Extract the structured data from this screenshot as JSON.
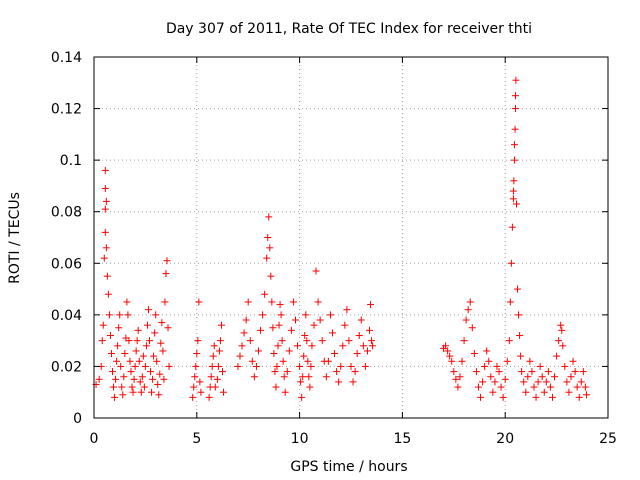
{
  "chart_data": {
    "type": "scatter",
    "title": "Day 307 of 2011, Rate Of TEC Index for receiver thti",
    "xlabel": "GPS time / hours",
    "ylabel": "ROTI / TECUs",
    "xlim": [
      0,
      25
    ],
    "ylim": [
      0,
      0.14
    ],
    "x_ticks": [
      "0",
      "5",
      "10",
      "15",
      "20",
      "25"
    ],
    "y_ticks": [
      "0",
      "0.02",
      "0.04",
      "0.06",
      "0.08",
      "0.1",
      "0.12",
      "0.14"
    ],
    "grid": true,
    "marker": "+",
    "color": "#ff0000",
    "series": [
      {
        "points": [
          [
            0.1,
            0.013
          ],
          [
            0.25,
            0.015
          ],
          [
            0.35,
            0.02
          ],
          [
            0.4,
            0.03
          ],
          [
            0.45,
            0.036
          ],
          [
            0.5,
            0.062
          ],
          [
            0.55,
            0.081
          ],
          [
            0.55,
            0.089
          ],
          [
            0.55,
            0.096
          ],
          [
            0.55,
            0.072
          ],
          [
            0.6,
            0.084
          ],
          [
            0.6,
            0.066
          ],
          [
            0.65,
            0.055
          ],
          [
            0.7,
            0.048
          ],
          [
            0.75,
            0.04
          ],
          [
            0.8,
            0.032
          ],
          [
            0.85,
            0.025
          ],
          [
            0.9,
            0.018
          ],
          [
            0.95,
            0.012
          ],
          [
            1.0,
            0.008
          ],
          [
            1.05,
            0.015
          ],
          [
            1.1,
            0.022
          ],
          [
            1.15,
            0.028
          ],
          [
            1.2,
            0.035
          ],
          [
            1.25,
            0.04
          ],
          [
            1.3,
            0.02
          ],
          [
            1.35,
            0.012
          ],
          [
            1.4,
            0.009
          ],
          [
            1.45,
            0.016
          ],
          [
            1.5,
            0.025
          ],
          [
            1.55,
            0.031
          ],
          [
            1.6,
            0.045
          ],
          [
            1.65,
            0.04
          ],
          [
            1.7,
            0.03
          ],
          [
            1.75,
            0.022
          ],
          [
            1.8,
            0.018
          ],
          [
            1.85,
            0.012
          ],
          [
            1.9,
            0.01
          ],
          [
            1.95,
            0.015
          ],
          [
            2.0,
            0.02
          ],
          [
            2.05,
            0.026
          ],
          [
            2.1,
            0.03
          ],
          [
            2.15,
            0.034
          ],
          [
            2.2,
            0.022
          ],
          [
            2.25,
            0.014
          ],
          [
            2.3,
            0.01
          ],
          [
            2.35,
            0.016
          ],
          [
            2.4,
            0.024
          ],
          [
            2.45,
            0.012
          ],
          [
            2.5,
            0.02
          ],
          [
            2.55,
            0.028
          ],
          [
            2.6,
            0.036
          ],
          [
            2.65,
            0.042
          ],
          [
            2.7,
            0.03
          ],
          [
            2.75,
            0.018
          ],
          [
            2.8,
            0.01
          ],
          [
            2.85,
            0.015
          ],
          [
            2.9,
            0.024
          ],
          [
            2.95,
            0.033
          ],
          [
            3.0,
            0.04
          ],
          [
            3.05,
            0.022
          ],
          [
            3.1,
            0.013
          ],
          [
            3.15,
            0.009
          ],
          [
            3.2,
            0.017
          ],
          [
            3.25,
            0.029
          ],
          [
            3.3,
            0.037
          ],
          [
            3.35,
            0.026
          ],
          [
            3.4,
            0.015
          ],
          [
            3.45,
            0.045
          ],
          [
            3.5,
            0.056
          ],
          [
            3.55,
            0.061
          ],
          [
            3.6,
            0.035
          ],
          [
            3.65,
            0.02
          ],
          [
            4.8,
            0.008
          ],
          [
            4.85,
            0.012
          ],
          [
            4.9,
            0.016
          ],
          [
            4.95,
            0.02
          ],
          [
            5.0,
            0.025
          ],
          [
            5.05,
            0.03
          ],
          [
            5.1,
            0.045
          ],
          [
            5.15,
            0.014
          ],
          [
            5.2,
            0.01
          ],
          [
            5.6,
            0.008
          ],
          [
            5.65,
            0.012
          ],
          [
            5.7,
            0.016
          ],
          [
            5.75,
            0.02
          ],
          [
            5.8,
            0.024
          ],
          [
            5.85,
            0.028
          ],
          [
            5.9,
            0.012
          ],
          [
            6.0,
            0.015
          ],
          [
            6.05,
            0.02
          ],
          [
            6.1,
            0.026
          ],
          [
            6.15,
            0.03
          ],
          [
            6.2,
            0.036
          ],
          [
            6.25,
            0.018
          ],
          [
            6.3,
            0.01
          ],
          [
            7.0,
            0.02
          ],
          [
            7.1,
            0.024
          ],
          [
            7.2,
            0.028
          ],
          [
            7.3,
            0.033
          ],
          [
            7.4,
            0.038
          ],
          [
            7.5,
            0.045
          ],
          [
            7.6,
            0.03
          ],
          [
            7.7,
            0.022
          ],
          [
            7.8,
            0.016
          ],
          [
            7.9,
            0.02
          ],
          [
            8.0,
            0.026
          ],
          [
            8.1,
            0.034
          ],
          [
            8.2,
            0.04
          ],
          [
            8.3,
            0.048
          ],
          [
            8.4,
            0.062
          ],
          [
            8.45,
            0.07
          ],
          [
            8.5,
            0.078
          ],
          [
            8.55,
            0.066
          ],
          [
            8.6,
            0.055
          ],
          [
            8.65,
            0.045
          ],
          [
            8.7,
            0.035
          ],
          [
            8.75,
            0.025
          ],
          [
            8.8,
            0.018
          ],
          [
            8.85,
            0.012
          ],
          [
            8.9,
            0.02
          ],
          [
            8.95,
            0.028
          ],
          [
            9.0,
            0.036
          ],
          [
            9.05,
            0.044
          ],
          [
            9.1,
            0.04
          ],
          [
            9.15,
            0.03
          ],
          [
            9.2,
            0.022
          ],
          [
            9.25,
            0.016
          ],
          [
            9.3,
            0.01
          ],
          [
            9.4,
            0.018
          ],
          [
            9.5,
            0.026
          ],
          [
            9.6,
            0.034
          ],
          [
            9.7,
            0.045
          ],
          [
            9.8,
            0.038
          ],
          [
            9.9,
            0.028
          ],
          [
            10.0,
            0.02
          ],
          [
            10.05,
            0.014
          ],
          [
            10.1,
            0.008
          ],
          [
            10.15,
            0.016
          ],
          [
            10.2,
            0.024
          ],
          [
            10.25,
            0.032
          ],
          [
            10.3,
            0.04
          ],
          [
            10.35,
            0.03
          ],
          [
            10.4,
            0.022
          ],
          [
            10.45,
            0.016
          ],
          [
            10.5,
            0.012
          ],
          [
            10.55,
            0.02
          ],
          [
            10.6,
            0.028
          ],
          [
            10.7,
            0.036
          ],
          [
            10.8,
            0.057
          ],
          [
            10.9,
            0.045
          ],
          [
            11.0,
            0.038
          ],
          [
            11.1,
            0.03
          ],
          [
            11.2,
            0.022
          ],
          [
            11.3,
            0.016
          ],
          [
            11.4,
            0.022
          ],
          [
            11.5,
            0.04
          ],
          [
            11.6,
            0.033
          ],
          [
            11.7,
            0.025
          ],
          [
            11.8,
            0.018
          ],
          [
            11.9,
            0.014
          ],
          [
            12.0,
            0.02
          ],
          [
            12.1,
            0.028
          ],
          [
            12.2,
            0.036
          ],
          [
            12.3,
            0.042
          ],
          [
            12.4,
            0.03
          ],
          [
            12.5,
            0.02
          ],
          [
            12.6,
            0.014
          ],
          [
            12.7,
            0.018
          ],
          [
            12.8,
            0.025
          ],
          [
            12.9,
            0.032
          ],
          [
            13.0,
            0.038
          ],
          [
            13.1,
            0.028
          ],
          [
            13.2,
            0.02
          ],
          [
            13.3,
            0.026
          ],
          [
            13.4,
            0.034
          ],
          [
            13.45,
            0.044
          ],
          [
            13.5,
            0.03
          ],
          [
            13.55,
            0.028
          ],
          [
            17.0,
            0.027
          ],
          [
            17.1,
            0.028
          ],
          [
            17.2,
            0.026
          ],
          [
            17.3,
            0.024
          ],
          [
            17.4,
            0.022
          ],
          [
            17.5,
            0.018
          ],
          [
            17.6,
            0.015
          ],
          [
            17.7,
            0.012
          ],
          [
            17.8,
            0.016
          ],
          [
            17.9,
            0.022
          ],
          [
            18.0,
            0.03
          ],
          [
            18.1,
            0.038
          ],
          [
            18.2,
            0.042
          ],
          [
            18.3,
            0.045
          ],
          [
            18.4,
            0.035
          ],
          [
            18.5,
            0.025
          ],
          [
            18.6,
            0.018
          ],
          [
            18.7,
            0.012
          ],
          [
            18.8,
            0.008
          ],
          [
            18.9,
            0.014
          ],
          [
            19.0,
            0.02
          ],
          [
            19.1,
            0.026
          ],
          [
            19.2,
            0.022
          ],
          [
            19.3,
            0.016
          ],
          [
            19.4,
            0.01
          ],
          [
            19.5,
            0.014
          ],
          [
            19.6,
            0.02
          ],
          [
            19.7,
            0.018
          ],
          [
            19.8,
            0.012
          ],
          [
            19.9,
            0.008
          ],
          [
            20.0,
            0.015
          ],
          [
            20.1,
            0.022
          ],
          [
            20.2,
            0.03
          ],
          [
            20.25,
            0.045
          ],
          [
            20.3,
            0.06
          ],
          [
            20.35,
            0.074
          ],
          [
            20.4,
            0.088
          ],
          [
            20.4,
            0.085
          ],
          [
            20.42,
            0.092
          ],
          [
            20.45,
            0.1
          ],
          [
            20.45,
            0.106
          ],
          [
            20.48,
            0.112
          ],
          [
            20.5,
            0.12
          ],
          [
            20.5,
            0.125
          ],
          [
            20.52,
            0.131
          ],
          [
            20.55,
            0.083
          ],
          [
            20.6,
            0.05
          ],
          [
            20.65,
            0.04
          ],
          [
            20.7,
            0.032
          ],
          [
            20.75,
            0.024
          ],
          [
            20.8,
            0.018
          ],
          [
            20.9,
            0.014
          ],
          [
            21.0,
            0.01
          ],
          [
            21.1,
            0.016
          ],
          [
            21.2,
            0.022
          ],
          [
            21.3,
            0.018
          ],
          [
            21.4,
            0.012
          ],
          [
            21.5,
            0.008
          ],
          [
            21.6,
            0.014
          ],
          [
            21.7,
            0.02
          ],
          [
            21.8,
            0.016
          ],
          [
            21.9,
            0.01
          ],
          [
            22.0,
            0.014
          ],
          [
            22.1,
            0.018
          ],
          [
            22.2,
            0.012
          ],
          [
            22.3,
            0.008
          ],
          [
            22.4,
            0.016
          ],
          [
            22.5,
            0.024
          ],
          [
            22.6,
            0.03
          ],
          [
            22.7,
            0.036
          ],
          [
            22.75,
            0.034
          ],
          [
            22.8,
            0.028
          ],
          [
            22.9,
            0.02
          ],
          [
            23.0,
            0.014
          ],
          [
            23.1,
            0.01
          ],
          [
            23.2,
            0.016
          ],
          [
            23.3,
            0.022
          ],
          [
            23.4,
            0.018
          ],
          [
            23.5,
            0.012
          ],
          [
            23.6,
            0.008
          ],
          [
            23.7,
            0.014
          ],
          [
            23.8,
            0.018
          ],
          [
            23.9,
            0.012
          ],
          [
            23.95,
            0.009
          ]
        ]
      }
    ]
  }
}
